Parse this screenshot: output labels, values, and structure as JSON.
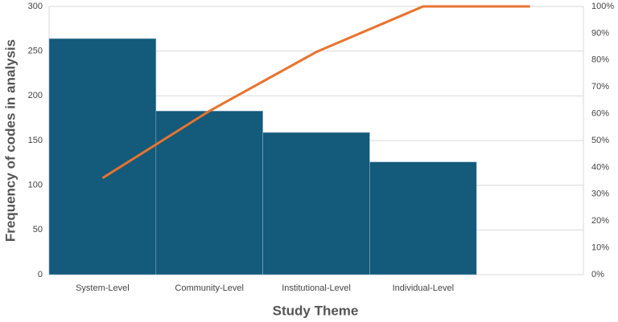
{
  "chart_data": {
    "type": "bar",
    "xlabel": "Study Theme",
    "ylabel": "Frequency of codes in analysis",
    "categories": [
      "System-Level",
      "Community-Level",
      "Institutional-Level",
      "Individual-Level",
      null
    ],
    "series": [
      {
        "color": "#135a7b",
        "values": [
          264,
          183,
          159,
          126,
          null
        ]
      },
      {
        "color": "#e8732e",
        "type": "line",
        "axis": "y2",
        "values": [
          36,
          61,
          83,
          100,
          100
        ]
      }
    ],
    "ylim": [
      0,
      300
    ],
    "yticks": [
      0,
      50,
      100,
      150,
      200,
      250,
      300
    ],
    "y2lim": [
      0,
      100
    ],
    "y2ticks": [
      {
        "value": 0,
        "label": "0%"
      },
      {
        "value": 10,
        "label": "10%"
      },
      {
        "value": 20,
        "label": "20%"
      },
      {
        "value": 30,
        "label": "30%"
      },
      {
        "value": 40,
        "label": "40%"
      },
      {
        "value": 50,
        "label": "50%"
      },
      {
        "value": 60,
        "label": "60%"
      },
      {
        "value": 70,
        "label": "70%"
      },
      {
        "value": 80,
        "label": "80%"
      },
      {
        "value": 90,
        "label": "90%"
      },
      {
        "value": 100,
        "label": "100%"
      }
    ],
    "grid": true
  }
}
